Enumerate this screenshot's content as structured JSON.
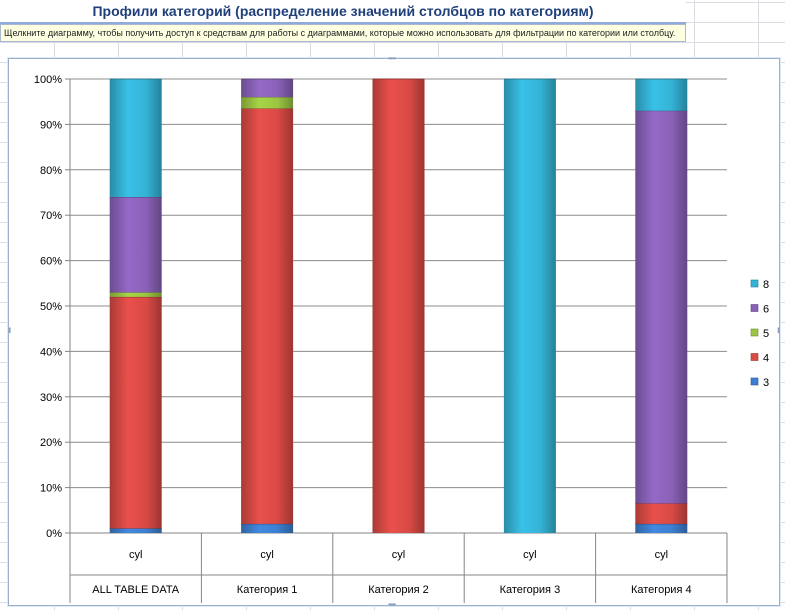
{
  "sheet": {
    "title": "Профили категорий (распределение значений столбцов по категориям)",
    "hint": "Щелкните диаграмму, чтобы получить доступ к средствам для работы с диаграммами, которые можно использовать для фильтрации по категории или столбцу."
  },
  "chart_data": {
    "type": "bar",
    "stacked": "percent",
    "categories": [
      "ALL TABLE DATA",
      "Категория 1",
      "Категория 2",
      "Категория 3",
      "Категория 4"
    ],
    "inner_labels": [
      "cyl",
      "cyl",
      "cyl",
      "cyl",
      "cyl"
    ],
    "y_ticks": [
      "0%",
      "10%",
      "20%",
      "30%",
      "40%",
      "50%",
      "60%",
      "70%",
      "80%",
      "90%",
      "100%"
    ],
    "ylim": [
      0,
      100
    ],
    "grid": true,
    "legend_position": "right",
    "series": [
      {
        "name": "3",
        "color": "#3d7fd0",
        "values": [
          1.0,
          2.0,
          0,
          0,
          2.0
        ]
      },
      {
        "name": "4",
        "color": "#d94a45",
        "values": [
          51.0,
          91.5,
          100,
          0,
          4.5
        ]
      },
      {
        "name": "5",
        "color": "#9bc542",
        "values": [
          1.0,
          2.5,
          0,
          0,
          0
        ]
      },
      {
        "name": "6",
        "color": "#8a61b8",
        "values": [
          21.0,
          4.0,
          0,
          0,
          86.5
        ]
      },
      {
        "name": "8",
        "color": "#35b3d6",
        "values": [
          26.0,
          0,
          0,
          100,
          7.0
        ]
      }
    ],
    "legend_order": [
      "8",
      "6",
      "5",
      "4",
      "3"
    ]
  }
}
